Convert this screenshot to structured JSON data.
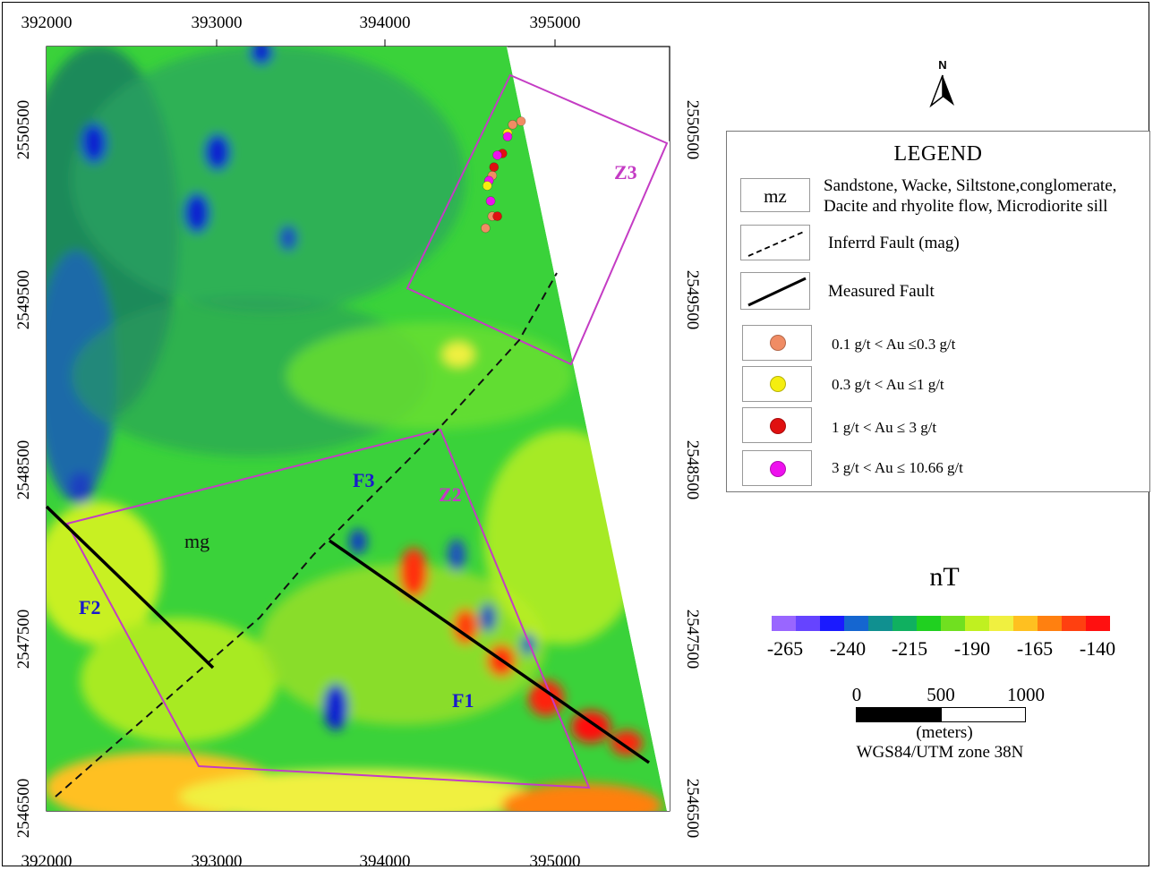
{
  "axes": {
    "x_ticks": [
      "392000",
      "393000",
      "394000",
      "395000"
    ],
    "y_ticks": [
      "2550500",
      "2549500",
      "2548500",
      "2547500",
      "2546500"
    ],
    "xlim": [
      392000,
      395700
    ],
    "ylim": [
      2546450,
      2550950
    ]
  },
  "map_labels": {
    "z1": "Z3",
    "z2": "Z2",
    "f1": "F1",
    "f2": "F2",
    "f3": "F3",
    "mg": "mg"
  },
  "north_arrow": {
    "label": "N",
    "icon": "north-arrow-icon"
  },
  "legend": {
    "title": "LEGEND",
    "mz_symbol": "mz",
    "mz_line1": "Sandstone, Wacke, Siltstone,conglomerate,",
    "mz_line2": "Dacite and rhyolite flow, Microdiorite sill",
    "inferred_fault": "Inferrd Fault (mag)",
    "measured_fault": "Measured Fault",
    "au_classes": [
      {
        "label": "0.1 g/t < Au  ≤0.3 g/t",
        "color": "#f08c64"
      },
      {
        "label": "0.3 g/t < Au  ≤1 g/t",
        "color": "#f5ee10"
      },
      {
        "label": "1 g/t < Au ≤ 3 g/t",
        "color": "#e01010"
      },
      {
        "label": "3 g/t < Au  ≤ 10.66 g/t",
        "color": "#ee10ee"
      }
    ]
  },
  "colorbar": {
    "unit": "nT",
    "labels": [
      "-265",
      "-240",
      "-215",
      "-190",
      "-165",
      "-140"
    ],
    "min": -265,
    "max": -140,
    "colors": [
      "#9966ff",
      "#6644ff",
      "#1a1aff",
      "#1566d0",
      "#109090",
      "#10b060",
      "#20d020",
      "#70e020",
      "#c0f020",
      "#f0f040",
      "#ffc020",
      "#ff8010",
      "#ff4010",
      "#ff1010"
    ]
  },
  "scalebar": {
    "labels": [
      "0",
      "500",
      "1000"
    ],
    "units": "(meters)",
    "projection": "WGS84/UTM zone 38N"
  },
  "samples": [
    {
      "e": 394800,
      "n": 2550550,
      "c": "#f08c64"
    },
    {
      "e": 394750,
      "n": 2550530,
      "c": "#f08c64"
    },
    {
      "e": 394720,
      "n": 2550480,
      "c": "#f5ee10"
    },
    {
      "e": 394720,
      "n": 2550460,
      "c": "#ee10ee"
    },
    {
      "e": 394690,
      "n": 2550360,
      "c": "#e01010"
    },
    {
      "e": 394660,
      "n": 2550350,
      "c": "#ee10ee"
    },
    {
      "e": 394640,
      "n": 2550280,
      "c": "#e01010"
    },
    {
      "e": 394630,
      "n": 2550230,
      "c": "#f08c64"
    },
    {
      "e": 394610,
      "n": 2550200,
      "c": "#ee10ee"
    },
    {
      "e": 394600,
      "n": 2550170,
      "c": "#f5ee10"
    },
    {
      "e": 394620,
      "n": 2550080,
      "c": "#ee10ee"
    },
    {
      "e": 394630,
      "n": 2549990,
      "c": "#f08c64"
    },
    {
      "e": 394660,
      "n": 2549990,
      "c": "#e01010"
    },
    {
      "e": 394590,
      "n": 2549920,
      "c": "#f08c64"
    }
  ]
}
